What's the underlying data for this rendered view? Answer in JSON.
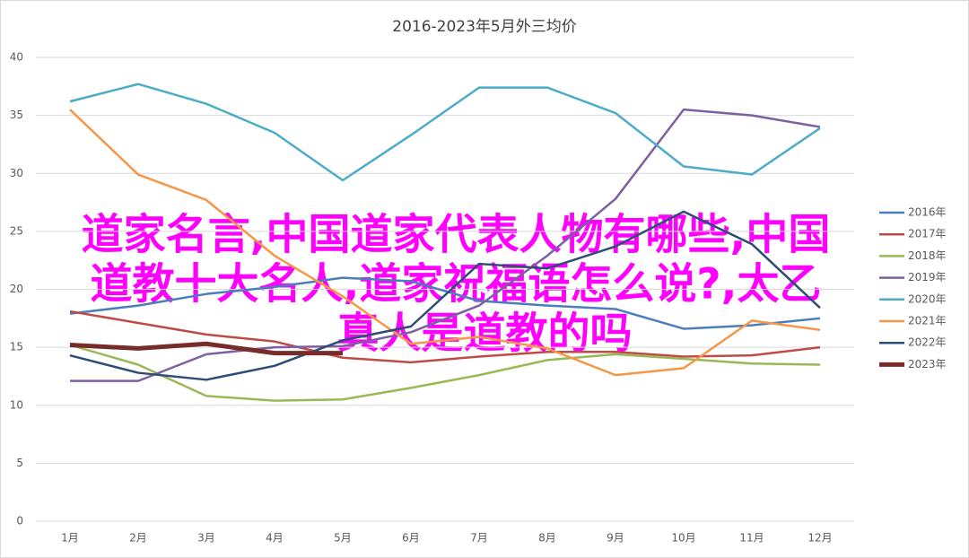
{
  "chart_data": {
    "type": "line",
    "title": "2016-2023年5月外三均价",
    "categories": [
      "1月",
      "2月",
      "3月",
      "4月",
      "5月",
      "6月",
      "7月",
      "8月",
      "9月",
      "10月",
      "11月",
      "12月"
    ],
    "series": [
      {
        "name": "2016年",
        "color": "#4a7ebb",
        "values": [
          17.9,
          18.6,
          19.6,
          20.2,
          21.0,
          20.7,
          19.0,
          18.6,
          18.3,
          16.6,
          16.9,
          17.5
        ]
      },
      {
        "name": "2017年",
        "color": "#be4b48",
        "values": [
          18.1,
          17.1,
          16.1,
          15.5,
          14.1,
          13.7,
          14.2,
          14.6,
          14.6,
          14.2,
          14.3,
          15.0
        ]
      },
      {
        "name": "2018年",
        "color": "#98b954",
        "values": [
          15.2,
          13.5,
          10.8,
          10.4,
          10.5,
          11.5,
          12.6,
          13.9,
          14.4,
          14.0,
          13.6,
          13.5
        ]
      },
      {
        "name": "2019年",
        "color": "#7d60a0",
        "values": [
          12.1,
          12.1,
          14.4,
          15.0,
          15.1,
          16.3,
          18.6,
          22.9,
          27.8,
          35.5,
          35.0,
          34.0
        ]
      },
      {
        "name": "2020年",
        "color": "#4bacc6",
        "values": [
          36.2,
          37.7,
          36.0,
          33.5,
          29.4,
          33.3,
          37.4,
          37.4,
          35.2,
          30.6,
          29.9,
          33.9
        ]
      },
      {
        "name": "2021年",
        "color": "#f79646",
        "values": [
          35.5,
          29.9,
          27.7,
          22.9,
          19.4,
          15.3,
          15.9,
          14.9,
          12.6,
          13.2,
          17.3,
          16.5
        ]
      },
      {
        "name": "2022年",
        "color": "#2c4d75",
        "values": [
          14.3,
          12.8,
          12.2,
          13.4,
          15.6,
          16.8,
          22.2,
          21.8,
          23.7,
          26.7,
          23.9,
          18.4
        ]
      },
      {
        "name": "2023年",
        "color": "#772c2a",
        "values": [
          15.2,
          14.9,
          15.3,
          14.5,
          14.5,
          null,
          null,
          null,
          null,
          null,
          null,
          null
        ]
      }
    ],
    "ylim": [
      0,
      40
    ],
    "yticks": [
      0,
      5,
      10,
      15,
      20,
      25,
      30,
      35,
      40
    ],
    "grid": true,
    "legend": "right"
  },
  "overlay": {
    "lines": [
      "道家名言,中国道家代表人物有哪些,中国",
      "道教十大名人,道家祝福语怎么说?,太乙",
      "真人是道教的吗"
    ],
    "color": "#ff00ff"
  }
}
